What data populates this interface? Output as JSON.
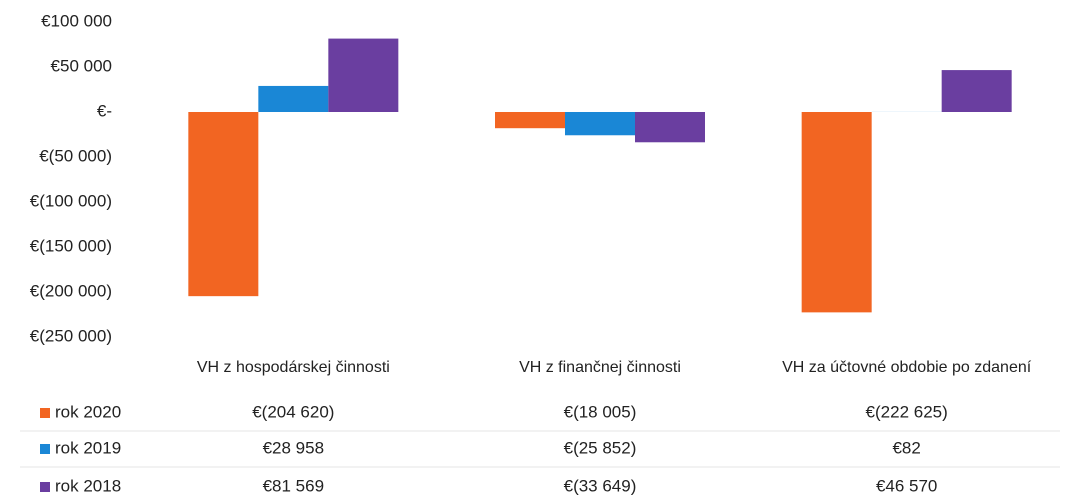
{
  "chart_data": {
    "type": "bar",
    "categories": [
      "VH z hospodárskej činnosti",
      "VH z finančnej činnosti",
      "VH za účtovné obdobie po zdanení"
    ],
    "series": [
      {
        "name": "rok 2020",
        "color": "#f26522",
        "values": [
          -204620,
          -18005,
          -222625
        ],
        "value_labels": [
          "€(204 620)",
          "€(18 005)",
          "€(222 625)"
        ]
      },
      {
        "name": "rok 2019",
        "color": "#1a87d6",
        "values": [
          28958,
          -25852,
          82
        ],
        "value_labels": [
          "€28 958",
          "€(25 852)",
          "€82"
        ]
      },
      {
        "name": "rok 2018",
        "color": "#6a3ea0",
        "values": [
          81569,
          -33649,
          46570
        ],
        "value_labels": [
          "€81 569",
          "€(33 649)",
          "€46 570"
        ]
      }
    ],
    "ylim": [
      -250000,
      100000
    ],
    "yticks": [
      {
        "value": 100000,
        "label": "€100 000"
      },
      {
        "value": 50000,
        "label": "€50 000"
      },
      {
        "value": 0,
        "label": "€-"
      },
      {
        "value": -50000,
        "label": "€(50 000)"
      },
      {
        "value": -100000,
        "label": "€(100 000)"
      },
      {
        "value": -150000,
        "label": "€(150 000)"
      },
      {
        "value": -200000,
        "label": "€(200 000)"
      },
      {
        "value": -250000,
        "label": "€(250 000)"
      }
    ],
    "grid": false,
    "legend": "table"
  }
}
